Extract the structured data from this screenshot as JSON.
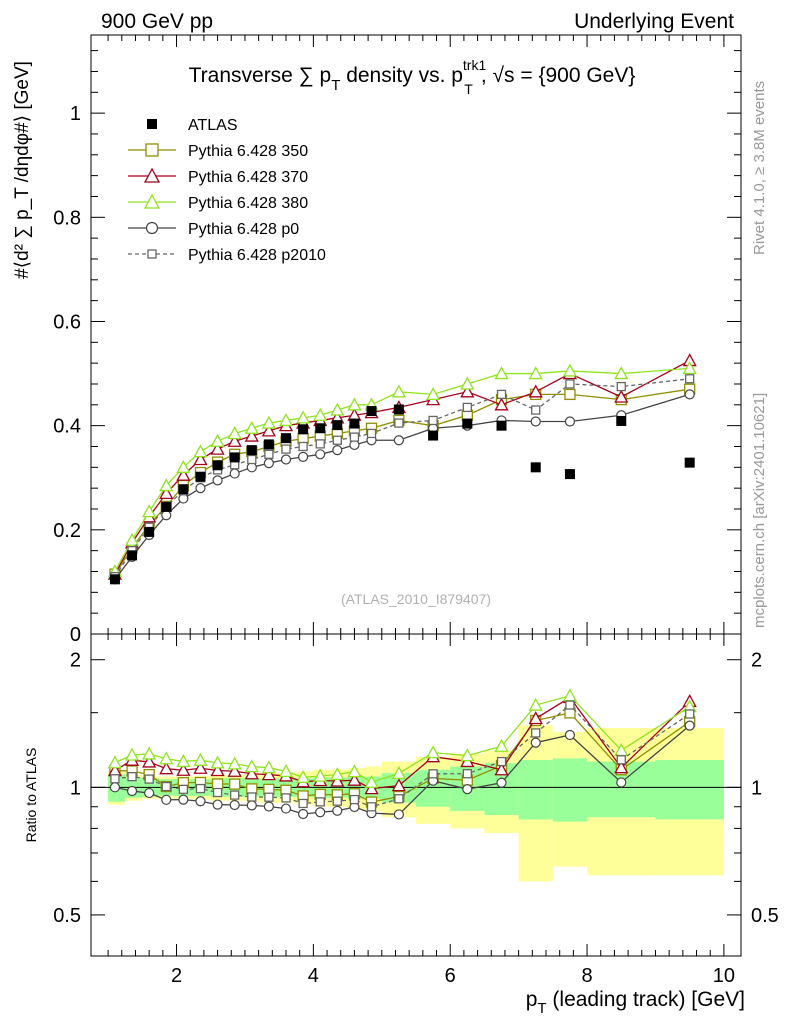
{
  "header": {
    "left": "900 GeV pp",
    "right": "Underlying Event"
  },
  "side": {
    "rivet": "Rivet 4.1.0, ≥ 3.8M events",
    "mcplots": "mcplots.cern.ch [arXiv:2401.10621]"
  },
  "watermark": "(ATLAS_2010_I879407)",
  "colors": {
    "p350": "#8f8f00",
    "p370": "#a5001a",
    "p380": "#8ee41f",
    "p0": "#444444",
    "p2010": "#666666",
    "atlas": "#000000",
    "band_inner": "#99ff99",
    "band_outer": "#ffff99"
  },
  "chart_data": {
    "type": "line",
    "title": {
      "main": "Transverse ∑ p",
      "sub_T": "T",
      "mid": " density vs. p",
      "sup": "trk1",
      "sub2": "T",
      "tail": ", √s = {900 GeV}"
    },
    "xlabel": "p_T (leading track) [GeV]",
    "xlabel_main": "p",
    "xlabel_sub": "T",
    "xlabel_tail": " (leading track) [GeV]",
    "ylabel": "#⟨d² ∑ p_T /dηdφ#⟩ [GeV]",
    "ratio_ylabel": "Ratio to ATLAS",
    "xlim": [
      0.75,
      10.25
    ],
    "main_ylim": [
      0,
      1.15
    ],
    "ratio_ylim": [
      0.4,
      2.3
    ],
    "xticks": [
      "2",
      "4",
      "6",
      "8",
      "10"
    ],
    "main_yticks": [
      "0",
      "0.2",
      "0.4",
      "0.6",
      "0.8",
      "1"
    ],
    "ratio_yticks": [
      "0.5",
      "1",
      "2"
    ],
    "x": [
      1.1,
      1.35,
      1.6,
      1.85,
      2.1,
      2.35,
      2.6,
      2.85,
      3.1,
      3.35,
      3.6,
      3.85,
      4.1,
      4.35,
      4.6,
      4.85,
      5.25,
      5.75,
      6.25,
      6.75,
      7.25,
      7.75,
      8.5,
      9.5
    ],
    "bins": [
      1.0,
      1.25,
      1.5,
      1.75,
      2.0,
      2.25,
      2.5,
      2.75,
      3.0,
      3.25,
      3.5,
      3.75,
      4.0,
      4.25,
      4.5,
      4.75,
      5.0,
      5.5,
      6.0,
      6.5,
      7.0,
      7.5,
      8.0,
      9.0,
      10.0
    ],
    "data": {
      "name": "ATLAS",
      "values": [
        0.105,
        0.151,
        0.196,
        0.244,
        0.278,
        0.302,
        0.324,
        0.339,
        0.353,
        0.364,
        0.376,
        0.393,
        0.395,
        0.401,
        0.404,
        0.428,
        0.431,
        0.381,
        0.404,
        0.4,
        0.32,
        0.307,
        0.409,
        0.329
      ]
    },
    "band_inner": [
      0.075,
      0.055,
      0.05,
      0.045,
      0.045,
      0.045,
      0.05,
      0.05,
      0.05,
      0.05,
      0.05,
      0.05,
      0.055,
      0.055,
      0.06,
      0.06,
      0.08,
      0.1,
      0.12,
      0.14,
      0.16,
      0.17,
      0.15,
      0.16,
      0.16
    ],
    "band_outer": [
      0.09,
      0.07,
      0.06,
      0.06,
      0.06,
      0.065,
      0.07,
      0.07,
      0.075,
      0.08,
      0.08,
      0.09,
      0.1,
      0.1,
      0.11,
      0.12,
      0.15,
      0.18,
      0.2,
      0.22,
      0.4,
      0.35,
      0.38,
      0.38,
      0.38
    ],
    "series": [
      {
        "name": "Pythia 6.428 350",
        "style": "square",
        "dashed": false,
        "color": "#8f8f00",
        "values": [
          0.115,
          0.165,
          0.21,
          0.245,
          0.285,
          0.31,
          0.33,
          0.345,
          0.35,
          0.36,
          0.37,
          0.375,
          0.38,
          0.385,
          0.39,
          0.395,
          0.41,
          0.4,
          0.42,
          0.45,
          0.46,
          0.46,
          0.45,
          0.47
        ]
      },
      {
        "name": "Pythia 6.428 370",
        "style": "triangle",
        "dashed": false,
        "color": "#a5001a",
        "values": [
          0.115,
          0.175,
          0.225,
          0.27,
          0.305,
          0.335,
          0.355,
          0.37,
          0.38,
          0.39,
          0.4,
          0.405,
          0.41,
          0.415,
          0.42,
          0.425,
          0.435,
          0.45,
          0.465,
          0.44,
          0.465,
          0.5,
          0.455,
          0.525
        ]
      },
      {
        "name": "Pythia 6.428 380",
        "style": "triangle",
        "dashed": false,
        "color": "#8ee41f",
        "values": [
          0.12,
          0.18,
          0.235,
          0.285,
          0.32,
          0.35,
          0.37,
          0.385,
          0.395,
          0.405,
          0.41,
          0.415,
          0.42,
          0.43,
          0.44,
          0.44,
          0.465,
          0.46,
          0.48,
          0.5,
          0.5,
          0.505,
          0.5,
          0.51
        ]
      },
      {
        "name": "Pythia 6.428 p0",
        "style": "circle",
        "dashed": false,
        "color": "#444444",
        "values": [
          0.105,
          0.148,
          0.19,
          0.228,
          0.26,
          0.28,
          0.295,
          0.308,
          0.32,
          0.328,
          0.335,
          0.34,
          0.345,
          0.353,
          0.363,
          0.372,
          0.372,
          0.395,
          0.4,
          0.41,
          0.408,
          0.408,
          0.42,
          0.46
        ]
      },
      {
        "name": "Pythia 6.428 p2010",
        "style": "square",
        "dashed": true,
        "color": "#666666",
        "values": [
          0.11,
          0.16,
          0.205,
          0.245,
          0.275,
          0.3,
          0.315,
          0.325,
          0.335,
          0.345,
          0.355,
          0.36,
          0.365,
          0.372,
          0.378,
          0.385,
          0.405,
          0.41,
          0.435,
          0.46,
          0.43,
          0.48,
          0.475,
          0.49
        ]
      }
    ]
  }
}
